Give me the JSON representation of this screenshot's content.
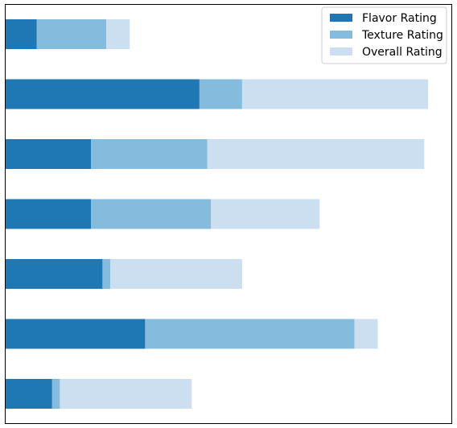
{
  "chart_data": {
    "type": "bar",
    "orientation": "horizontal",
    "stacked": true,
    "categories": [
      "",
      "",
      "",
      "",
      "",
      "",
      ""
    ],
    "series": [
      {
        "name": "Flavor Rating",
        "color": "#1f77b4",
        "values": [
          0.4,
          2.5,
          1.1,
          1.1,
          1.25,
          1.8,
          0.6
        ]
      },
      {
        "name": "Texture Rating",
        "color": "#85bbdd",
        "values": [
          0.9,
          0.55,
          1.5,
          1.55,
          0.1,
          2.7,
          0.1
        ]
      },
      {
        "name": "Overall Rating",
        "color": "#cbdff0",
        "values": [
          0.3,
          2.4,
          2.8,
          1.4,
          1.7,
          0.3,
          1.7
        ]
      }
    ],
    "xlim": [
      0,
      5.75
    ],
    "xlabel": "",
    "ylabel": "",
    "title": "",
    "axis_ticks_shown": false,
    "grid": false,
    "legend_position": "top-right"
  }
}
